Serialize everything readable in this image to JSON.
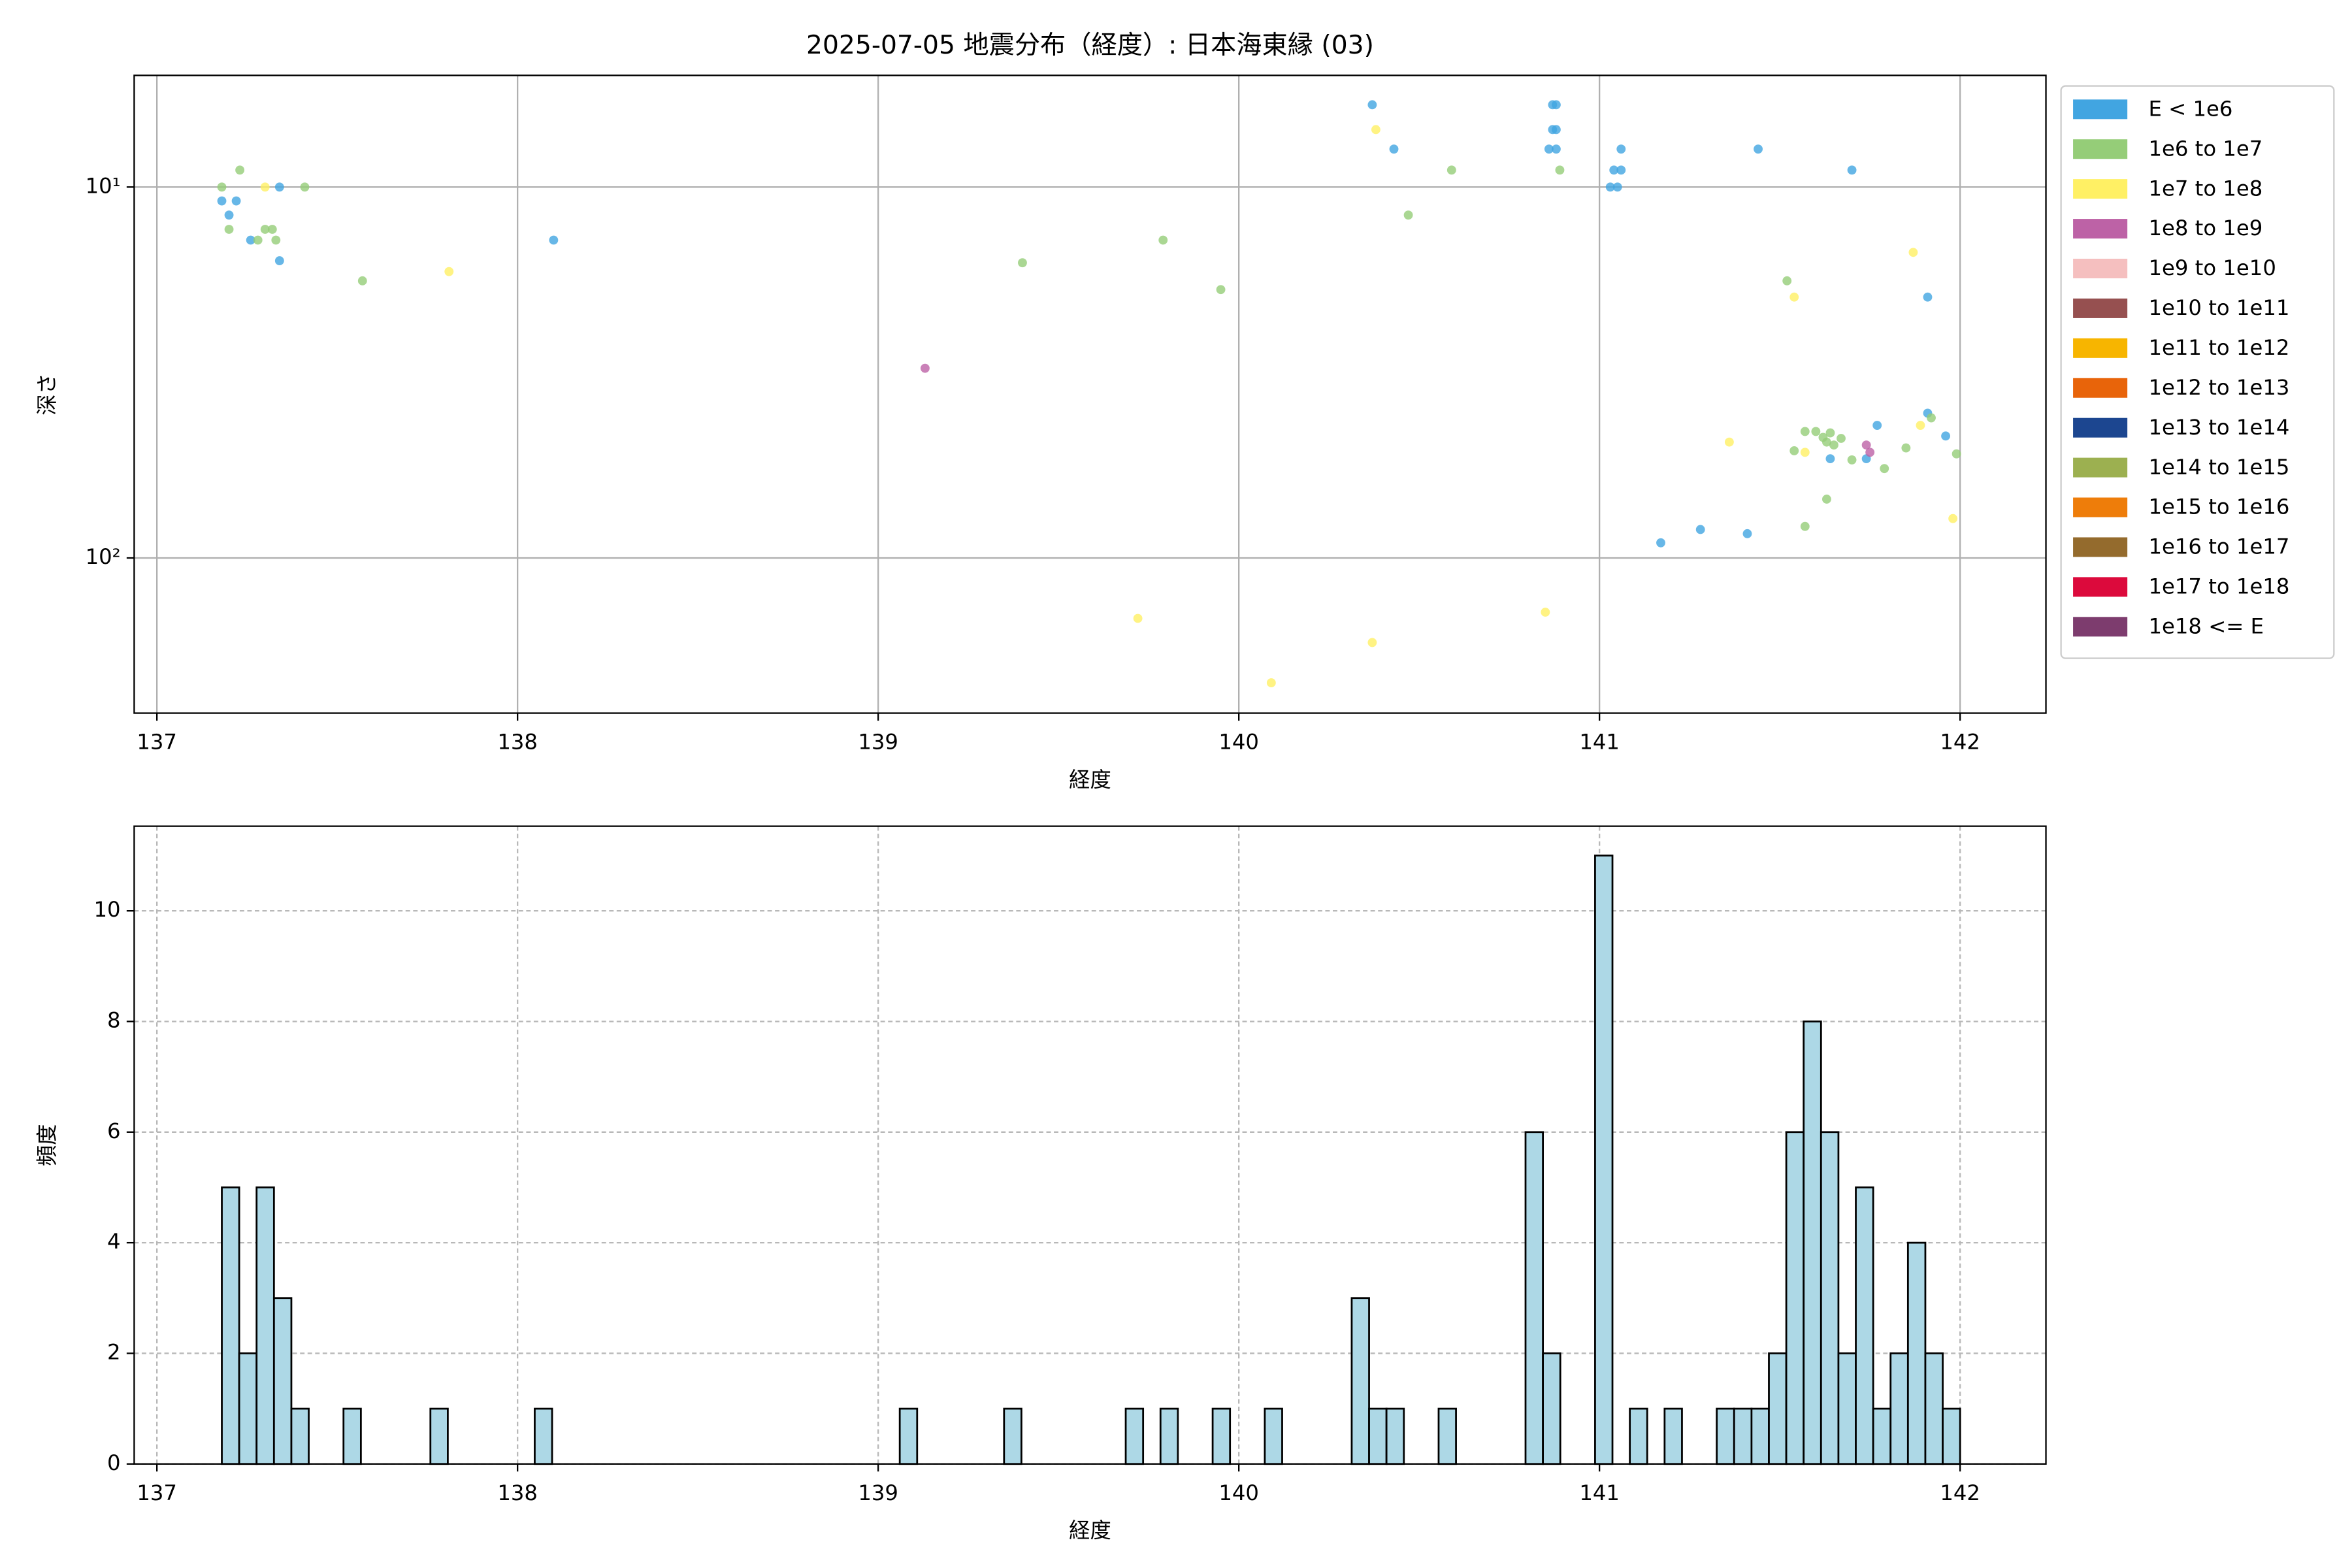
{
  "chart_data": [
    {
      "type": "scatter",
      "title": "2025-07-05 地震分布（経度）: 日本海東縁 (03)",
      "x_label": "経度",
      "y_label": "深さ",
      "xlim": [
        136.937,
        142.238
      ],
      "xticks": [
        137,
        138,
        139,
        140,
        141,
        142
      ],
      "ylim": [
        262,
        5
      ],
      "yscale": "log",
      "yticks": [
        {
          "value": 10,
          "label": "10¹"
        },
        {
          "value": 100,
          "label": "10²"
        }
      ],
      "grid": true,
      "grid_style": "solid",
      "legend": "outside-upper-right",
      "series": [
        {
          "name": "E < 1e6",
          "color": "#41a5e1",
          "x": [
            137.18,
            137.2,
            137.22,
            137.26,
            137.34,
            137.34,
            138.1,
            140.37,
            140.43,
            140.87,
            140.88,
            140.87,
            140.88,
            140.86,
            140.88,
            141.06,
            141.04,
            141.06,
            141.03,
            141.05,
            141.44,
            141.7,
            141.91,
            141.77,
            141.91,
            141.96,
            141.64,
            141.74,
            141.17,
            141.28,
            141.41
          ],
          "values": [
            10.9,
            11.9,
            10.9,
            13.9,
            10.0,
            15.8,
            13.9,
            6.0,
            7.9,
            6.0,
            6.0,
            7.0,
            7.0,
            7.9,
            7.9,
            7.9,
            9.0,
            9.0,
            10.0,
            10.0,
            7.9,
            9.0,
            19.8,
            43.9,
            40.7,
            46.9,
            54.0,
            54.0,
            91,
            83.8,
            86.0
          ]
        },
        {
          "name": "1e6 to 1e7",
          "color": "#95cd78",
          "x": [
            137.18,
            137.23,
            137.2,
            137.3,
            137.32,
            137.28,
            137.33,
            137.41,
            137.57,
            139.4,
            139.79,
            139.95,
            140.47,
            140.59,
            140.89,
            141.52,
            141.54,
            141.57,
            141.6,
            141.62,
            141.64,
            141.63,
            141.65,
            141.67,
            141.7,
            141.79,
            141.85,
            141.92,
            141.99,
            141.57,
            141.63
          ],
          "values": [
            10,
            9.0,
            13.0,
            13.0,
            13.0,
            13.9,
            13.9,
            10,
            17.9,
            16.0,
            13.9,
            18.9,
            11.9,
            9.0,
            9.0,
            17.9,
            51.4,
            45.6,
            45.6,
            47.3,
            46.0,
            48.7,
            49.6,
            47.6,
            54.4,
            57.4,
            50.5,
            41.9,
            52.4,
            82.2,
            69.4
          ]
        },
        {
          "name": "1e7 to 1e8",
          "color": "#fff064",
          "x": [
            137.3,
            137.81,
            140.38,
            141.87,
            141.54,
            141.36,
            141.57,
            141.89,
            141.98,
            139.72,
            140.37,
            140.85,
            140.09
          ],
          "values": [
            10,
            16.9,
            7.0,
            15.0,
            19.8,
            48.7,
            51.9,
            43.9,
            78.3,
            145.5,
            169,
            140,
            217
          ]
        },
        {
          "name": "1e8 to 1e9",
          "color": "#bd62a6",
          "x": [
            139.13,
            141.74,
            141.75
          ],
          "values": [
            30.8,
            49.6,
            51.9
          ]
        },
        {
          "name": "1e9 to 1e10",
          "color": "#f5bfbf",
          "x": [],
          "values": []
        },
        {
          "name": "1e10 to 1e11",
          "color": "#965050",
          "x": [],
          "values": []
        },
        {
          "name": "1e11 to 1e12",
          "color": "#f7b500",
          "x": [],
          "values": []
        },
        {
          "name": "1e12 to 1e13",
          "color": "#e8640a",
          "x": [],
          "values": []
        },
        {
          "name": "1e13 to 1e14",
          "color": "#1c4690",
          "x": [],
          "values": []
        },
        {
          "name": "1e14 to 1e15",
          "color": "#9cb050",
          "x": [],
          "values": []
        },
        {
          "name": "1e15 to 1e16",
          "color": "#ee7d0a",
          "x": [],
          "values": []
        },
        {
          "name": "1e16 to 1e17",
          "color": "#946b2d",
          "x": [],
          "values": []
        },
        {
          "name": "1e17 to 1e18",
          "color": "#dc0a3c",
          "x": [],
          "values": []
        },
        {
          "name": "1e18 <= E",
          "color": "#7d3c6e",
          "x": [],
          "values": []
        }
      ]
    },
    {
      "type": "histogram",
      "x_label": "経度",
      "y_label": "頻度",
      "xlim": [
        136.937,
        142.238
      ],
      "xticks": [
        137,
        138,
        139,
        140,
        141,
        142
      ],
      "ylim": [
        0,
        11.53
      ],
      "yticks": [
        0,
        2,
        4,
        6,
        8,
        10
      ],
      "grid": true,
      "grid_style": "dashed",
      "color": "#add8e6",
      "edgecolor": "#000000",
      "bins": [
        137.18,
        137.2282,
        137.2764,
        137.3246,
        137.3728,
        137.421,
        137.4692,
        137.5174,
        137.5656,
        137.6138,
        137.662,
        137.7102,
        137.7584,
        137.8066,
        137.8548,
        137.903,
        137.9512,
        137.9994,
        138.0476,
        138.0958,
        138.144,
        138.1922,
        138.2404,
        138.2886,
        138.3368,
        138.385,
        138.4332,
        138.4814,
        138.5296,
        138.5778,
        138.626,
        138.6742,
        138.7224,
        138.7706,
        138.8188,
        138.867,
        138.9152,
        138.9634,
        139.0116,
        139.0598,
        139.108,
        139.1562,
        139.2044,
        139.2526,
        139.3008,
        139.349,
        139.3972,
        139.4454,
        139.4936,
        139.5418,
        139.59,
        139.6382,
        139.6864,
        139.7346,
        139.7828,
        139.831,
        139.8792,
        139.9274,
        139.9756,
        140.0238,
        140.072,
        140.1202,
        140.1684,
        140.2166,
        140.2648,
        140.313,
        140.3612,
        140.4094,
        140.4576,
        140.5058,
        140.554,
        140.6022,
        140.6504,
        140.6986,
        140.7468,
        140.795,
        140.8432,
        140.8914,
        140.9396,
        140.9878,
        141.036,
        141.0842,
        141.1324,
        141.1806,
        141.2288,
        141.277,
        141.3252,
        141.3734,
        141.4216,
        141.4698,
        141.518,
        141.5662,
        141.6144,
        141.6626,
        141.7108,
        141.759,
        141.8072,
        141.8554,
        141.9036,
        141.9518,
        142.0
      ],
      "values": [
        5,
        2,
        5,
        3,
        1,
        0,
        0,
        1,
        0,
        0,
        0,
        0,
        1,
        0,
        0,
        0,
        0,
        0,
        1,
        0,
        0,
        0,
        0,
        0,
        0,
        0,
        0,
        0,
        0,
        0,
        0,
        0,
        0,
        0,
        0,
        0,
        0,
        0,
        0,
        1,
        0,
        0,
        0,
        0,
        0,
        1,
        0,
        0,
        0,
        0,
        0,
        0,
        1,
        0,
        1,
        0,
        0,
        1,
        0,
        0,
        1,
        0,
        0,
        0,
        0,
        3,
        1,
        1,
        0,
        0,
        1,
        0,
        0,
        0,
        0,
        6,
        2,
        0,
        0,
        11,
        0,
        1,
        0,
        1,
        0,
        0,
        1,
        1,
        1,
        2,
        6,
        8,
        6,
        2,
        5,
        1,
        2,
        4,
        2,
        1
      ]
    }
  ]
}
